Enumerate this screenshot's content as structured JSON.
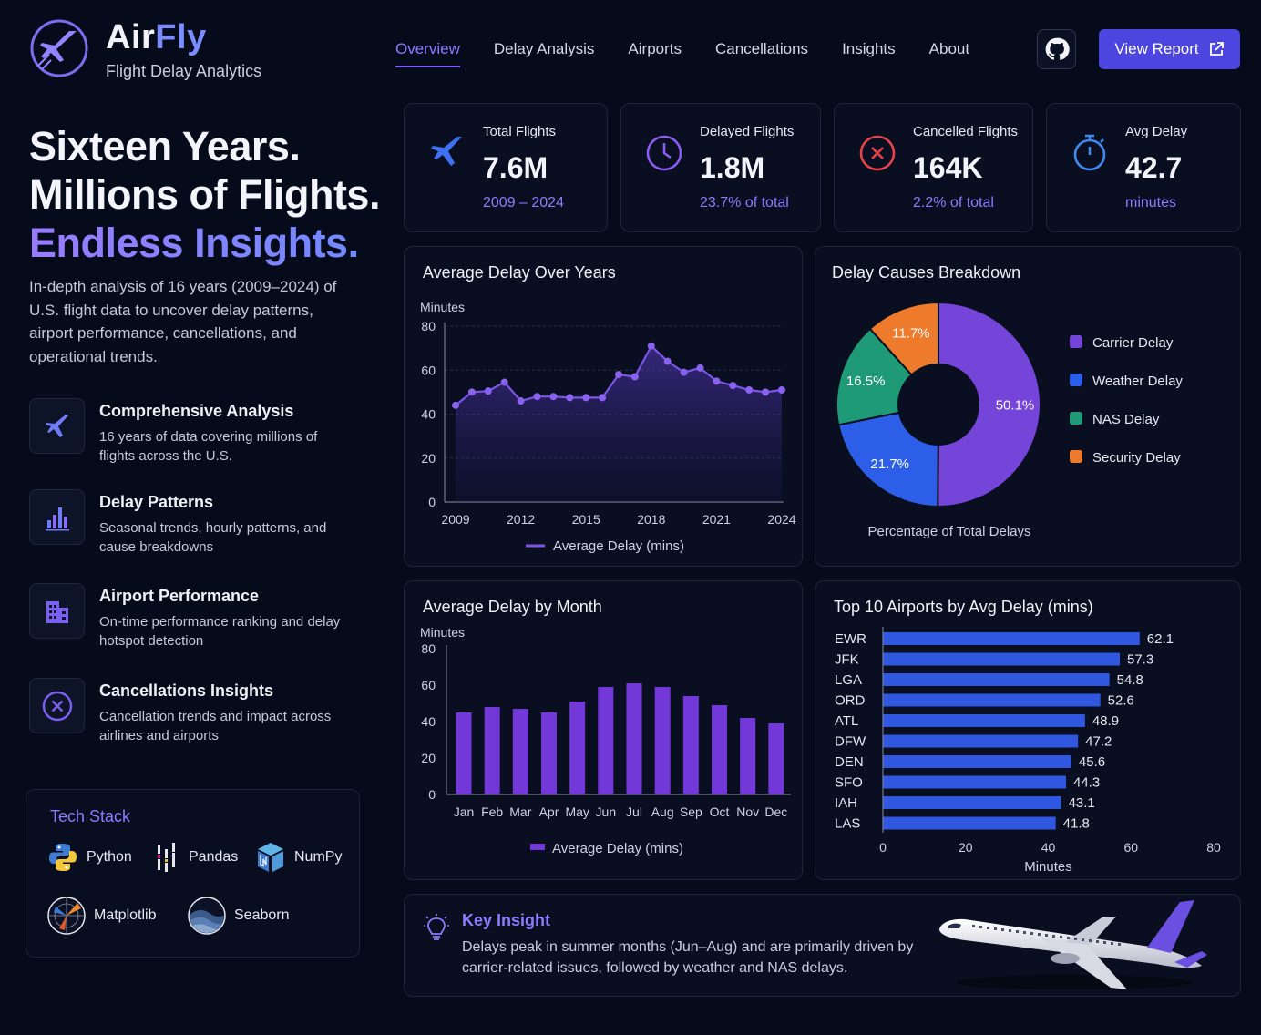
{
  "brand": {
    "name_part1": "Air",
    "name_part2": "Fly",
    "subtitle": "Flight Delay Analytics"
  },
  "nav": {
    "items": [
      "Overview",
      "Delay Analysis",
      "Airports",
      "Cancellations",
      "Insights",
      "About"
    ],
    "active": "Overview"
  },
  "header": {
    "report_label": "View Report"
  },
  "hero": {
    "line1": "Sixteen Years.",
    "line2": "Millions of Flights.",
    "line3": "Endless Insights."
  },
  "intro": "In-depth analysis of 16 years (2009–2024) of U.S. flight data to uncover delay patterns, airport performance, cancellations, and operational trends.",
  "features": [
    {
      "title": "Comprehensive Analysis",
      "desc": "16 years of data covering millions of flights across the U.S.",
      "icon": "airplane-icon"
    },
    {
      "title": "Delay Patterns",
      "desc": "Seasonal trends, hourly patterns, and cause breakdowns",
      "icon": "bar-chart-icon"
    },
    {
      "title": "Airport Performance",
      "desc": "On-time performance ranking and delay hotspot detection",
      "icon": "building-icon"
    },
    {
      "title": "Cancellations Insights",
      "desc": "Cancellation trends and impact across airlines and airports",
      "icon": "cancel-circle-icon"
    }
  ],
  "tech_stack": {
    "title": "Tech Stack",
    "items": [
      "Python",
      "Pandas",
      "NumPy",
      "Matplotlib",
      "Seaborn"
    ]
  },
  "stats": [
    {
      "label": "Total Flights",
      "value": "7.6M",
      "sub": "2009 – 2024",
      "icon": "airplane-icon"
    },
    {
      "label": "Delayed Flights",
      "value": "1.8M",
      "sub": "23.7% of total",
      "icon": "clock-icon"
    },
    {
      "label": "Cancelled Flights",
      "value": "164K",
      "sub": "2.2% of total",
      "icon": "cancel-circle-icon"
    },
    {
      "label": "Avg Delay",
      "value": "42.7",
      "sub": "minutes",
      "icon": "stopwatch-icon"
    }
  ],
  "colors": {
    "accent": "#7b5cf0",
    "bar_blue": "#2f57e0",
    "carrier": "#7544d8",
    "weather": "#2c5ee8",
    "nas": "#1f9a76",
    "security": "#ee7a2c"
  },
  "chart_data": [
    {
      "type": "area",
      "title": "Average Delay Over Years",
      "ylabel": "Minutes",
      "xlabel": "",
      "ylim": [
        0,
        80
      ],
      "yticks": [
        0,
        20,
        40,
        60,
        80
      ],
      "xticks": [
        "2009",
        "2012",
        "2015",
        "2018",
        "2021",
        "2024"
      ],
      "x": [
        2009.0,
        2009.75,
        2010.5,
        2011.25,
        2012.0,
        2012.75,
        2013.5,
        2014.25,
        2015.0,
        2015.75,
        2016.5,
        2017.25,
        2018.0,
        2018.75,
        2019.5,
        2020.25,
        2021.0,
        2021.75,
        2022.5,
        2023.25,
        2024.0
      ],
      "values": [
        44,
        50,
        50.5,
        54.5,
        46,
        48,
        48,
        47.5,
        47.5,
        47.5,
        58,
        57,
        71,
        64,
        59,
        61,
        55,
        53,
        51,
        50,
        51
      ],
      "legend": "Average Delay (mins)"
    },
    {
      "type": "pie",
      "title": "Delay Causes Breakdown",
      "labels": [
        "Carrier Delay",
        "Weather Delay",
        "NAS Delay",
        "Security Delay"
      ],
      "values": [
        50.1,
        21.7,
        16.5,
        11.7
      ],
      "value_labels": [
        "50.1%",
        "21.7%",
        "16.5%",
        "11.7%"
      ],
      "caption": "Percentage of Total Delays",
      "legend_position": "right"
    },
    {
      "type": "bar",
      "title": "Average Delay by Month",
      "ylabel": "Minutes",
      "ylim": [
        0,
        80
      ],
      "yticks": [
        0,
        20,
        40,
        60,
        80
      ],
      "categories": [
        "Jan",
        "Feb",
        "Mar",
        "Apr",
        "May",
        "Jun",
        "Jul",
        "Aug",
        "Sep",
        "Oct",
        "Nov",
        "Dec"
      ],
      "values": [
        45,
        48,
        47,
        45,
        51,
        59,
        61,
        59,
        54,
        49,
        42,
        39
      ],
      "legend": "Average Delay (mins)"
    },
    {
      "type": "bar",
      "orientation": "horizontal",
      "title": "Top 10 Airports by Avg Delay (mins)",
      "xlabel": "Minutes",
      "xlim": [
        0,
        80
      ],
      "xticks": [
        0,
        20,
        40,
        60,
        80
      ],
      "categories": [
        "EWR",
        "JFK",
        "LGA",
        "ORD",
        "ATL",
        "DFW",
        "DEN",
        "SFO",
        "IAH",
        "LAS"
      ],
      "values": [
        62.1,
        57.3,
        54.8,
        52.6,
        48.9,
        47.2,
        45.6,
        44.3,
        43.1,
        41.8
      ],
      "value_labels": [
        "62.1",
        "57.3",
        "54.8",
        "52.6",
        "48.9",
        "47.2",
        "45.6",
        "44.3",
        "43.1",
        "41.8"
      ]
    }
  ],
  "insight": {
    "title": "Key Insight",
    "text": "Delays peak in summer months (Jun–Aug) and are primarily driven by carrier-related issues, followed by weather and NAS delays."
  }
}
